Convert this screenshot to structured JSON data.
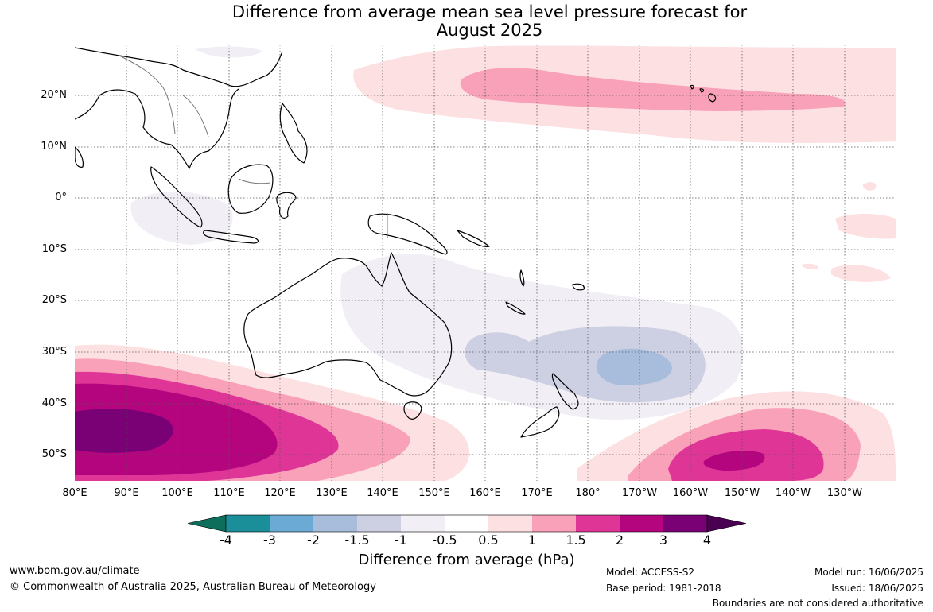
{
  "title": {
    "line1": "Difference from average mean sea level pressure forecast for",
    "line2": "August 2025"
  },
  "map": {
    "lat_labels": [
      "20°N",
      "10°N",
      "0°",
      "10°S",
      "20°S",
      "30°S",
      "40°S",
      "50°S"
    ],
    "lon_labels": [
      "80°E",
      "90°E",
      "100°E",
      "110°E",
      "120°E",
      "130°E",
      "140°E",
      "150°E",
      "160°E",
      "170°E",
      "180°",
      "170°W",
      "160°W",
      "150°W",
      "140°W",
      "130°W"
    ],
    "grid": true,
    "colors": {
      "anomaly_neg_1_to_neg_0_5": "#f2eef5",
      "anomaly_neg_1_5_to_neg_1": "#cdd0e3",
      "anomaly_neg_2_to_neg_1_5": "#a8bcdc",
      "anomaly_0_5_to_1": "#fde0e1",
      "anomaly_1_to_1_5": "#f9a1b8",
      "anomaly_1_5_to_2": "#de3597",
      "anomaly_2_to_3": "#b4057f",
      "anomaly_3_to_4": "#7a0075",
      "coastline": "#000000",
      "borders": "#777777"
    }
  },
  "colorbar": {
    "ticks": [
      "-4",
      "-3",
      "-2",
      "-1.5",
      "-1",
      "-0.5",
      "0.5",
      "1",
      "1.5",
      "2",
      "3",
      "4"
    ],
    "colors": [
      "#0e6e5c",
      "#1b8f99",
      "#6aaad4",
      "#a8bcdc",
      "#cdd0e3",
      "#f2eef5",
      "#ffffff",
      "#fde0e1",
      "#f9a1b8",
      "#de3597",
      "#b4057f",
      "#7a0075",
      "#4a0050"
    ],
    "label": "Difference from average (hPa)"
  },
  "footer": {
    "website": "www.bom.gov.au/climate",
    "copyright": "© Commonwealth of Australia 2025, Australian Bureau of Meteorology",
    "model": "Model: ACCESS-S2",
    "base_period": "Base period: 1981-2018",
    "model_run": "Model run: 16/06/2025",
    "issued": "Issued: 18/06/2025",
    "disclaimer": "Boundaries are not considered authoritative"
  }
}
